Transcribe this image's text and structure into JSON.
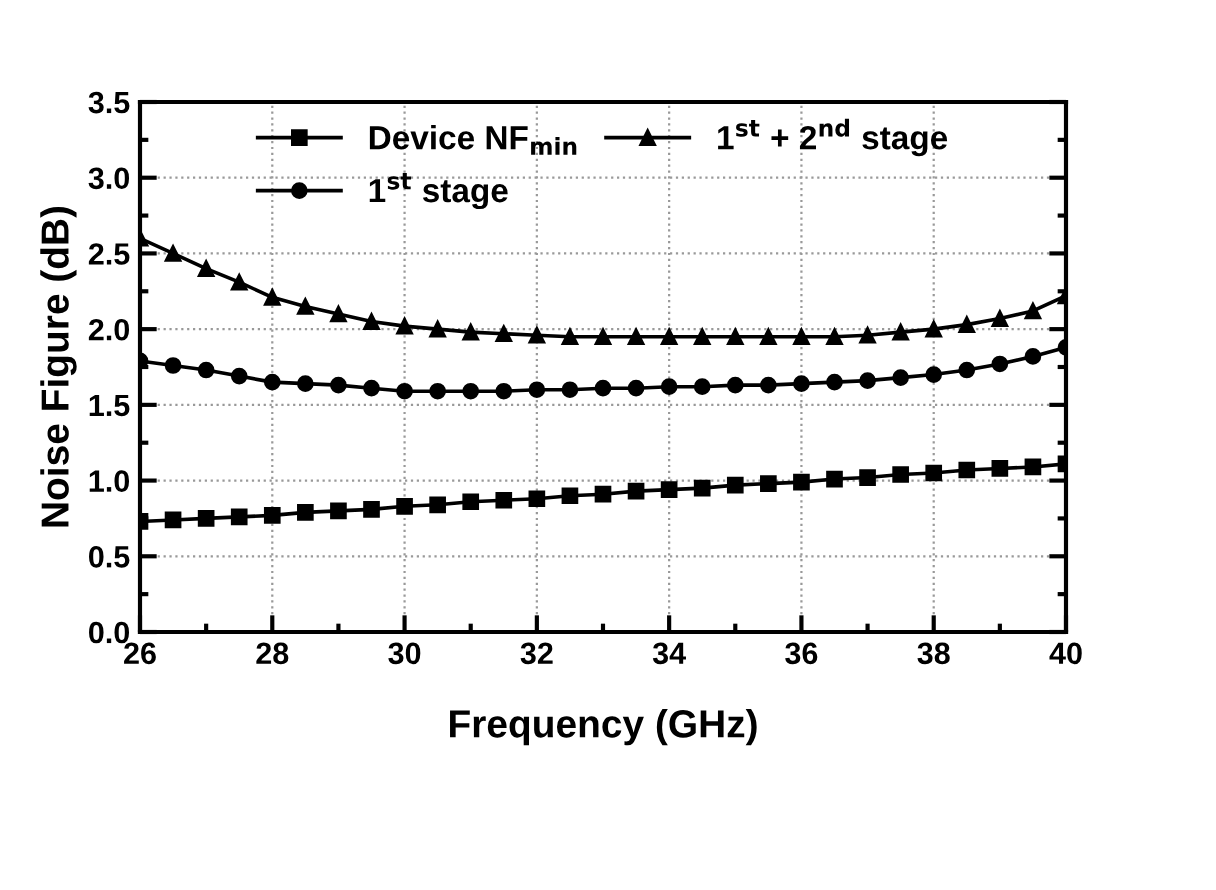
{
  "chart_data": {
    "type": "line",
    "xlabel": "Frequency (GHz)",
    "ylabel": "Noise Figure (dB)",
    "x": [
      26,
      26.5,
      27,
      27.5,
      28,
      28.5,
      29,
      29.5,
      30,
      30.5,
      31,
      31.5,
      32,
      32.5,
      33,
      33.5,
      34,
      34.5,
      35,
      35.5,
      36,
      36.5,
      37,
      37.5,
      38,
      38.5,
      39,
      39.5,
      40
    ],
    "series": [
      {
        "name": "Device NF$_{min}$",
        "color": "#000000",
        "marker": "square",
        "values": [
          0.73,
          0.74,
          0.75,
          0.76,
          0.77,
          0.79,
          0.8,
          0.81,
          0.83,
          0.84,
          0.86,
          0.87,
          0.88,
          0.9,
          0.91,
          0.93,
          0.94,
          0.95,
          0.97,
          0.98,
          0.99,
          1.01,
          1.02,
          1.04,
          1.05,
          1.07,
          1.08,
          1.09,
          1.11
        ]
      },
      {
        "name": "1$^{st}$ stage",
        "color": "#000000",
        "marker": "circle",
        "values": [
          1.79,
          1.76,
          1.73,
          1.69,
          1.65,
          1.64,
          1.63,
          1.61,
          1.59,
          1.59,
          1.59,
          1.59,
          1.6,
          1.6,
          1.61,
          1.61,
          1.62,
          1.62,
          1.63,
          1.63,
          1.64,
          1.65,
          1.66,
          1.68,
          1.7,
          1.73,
          1.77,
          1.82,
          1.88
        ]
      },
      {
        "name": "1$^{st}$ + 2$^{nd}$ stage",
        "color": "#000000",
        "marker": "triangle",
        "values": [
          2.6,
          2.5,
          2.4,
          2.31,
          2.21,
          2.15,
          2.1,
          2.05,
          2.02,
          2.0,
          1.98,
          1.97,
          1.96,
          1.95,
          1.95,
          1.95,
          1.95,
          1.95,
          1.95,
          1.95,
          1.95,
          1.95,
          1.96,
          1.98,
          2.0,
          2.03,
          2.07,
          2.12,
          2.22
        ]
      }
    ],
    "xlim": [
      26,
      40
    ],
    "xticks": [
      26,
      28,
      30,
      32,
      34,
      36,
      38,
      40
    ],
    "ylim": [
      0,
      3.5
    ],
    "yticks": [
      {
        "value": 0,
        "label": "0.0"
      },
      0.5,
      {
        "value": 1,
        "label": "1.0"
      },
      1.5,
      {
        "value": 2,
        "label": "2.0"
      },
      2.5,
      {
        "value": 3,
        "label": "3.0"
      },
      3.5
    ],
    "grid": true,
    "legend": "top",
    "line_style": "solid"
  }
}
